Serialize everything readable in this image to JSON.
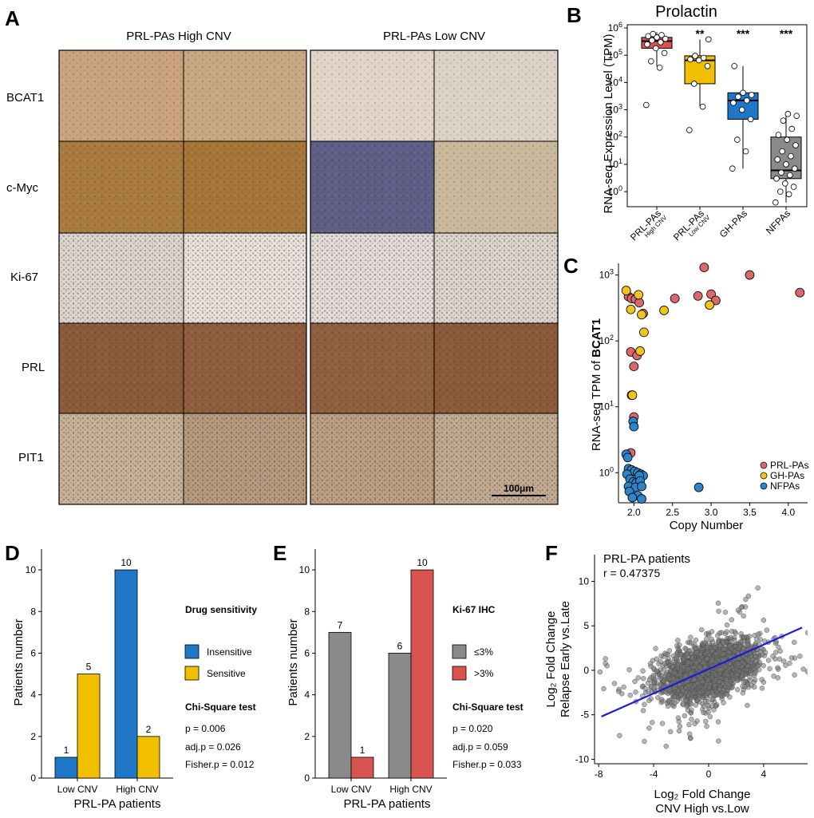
{
  "panel_labels": {
    "A": "A",
    "B": "B",
    "C": "C",
    "D": "D",
    "E": "E",
    "F": "F"
  },
  "panel_a": {
    "col_headers": [
      "PRL-PAs High CNV",
      "PRL-PAs Low CNV"
    ],
    "row_labels": [
      "BCAT1",
      "c-Myc",
      "Ki-67",
      "PRL",
      "PIT1"
    ],
    "scale_bar": "100μm",
    "tile_colors": [
      [
        "#c9a27e",
        "#c7a883",
        "#e0d5c6",
        "#dcd3c8"
      ],
      [
        "#a97a3f",
        "#a67638",
        "#5e5e86",
        "#c9b99a"
      ],
      [
        "#ddd6cf",
        "#e8e2dc",
        "#e2ddd8",
        "#ddd6cf"
      ],
      [
        "#8a5a3b",
        "#8d5d3e",
        "#8f6040",
        "#8a5a3b"
      ],
      [
        "#c8b299",
        "#b69b7f",
        "#bda084",
        "#c2ab92"
      ]
    ]
  },
  "chart_data": [
    {
      "panel": "B",
      "type": "box",
      "title": "Prolactin",
      "ylabel": "RNA-seq Expression Level (TPM)",
      "yscale": "log10",
      "ylim": [
        0.3,
        1000000
      ],
      "y_ticks": [
        {
          "v": 1,
          "base": "10",
          "exp": "0"
        },
        {
          "v": 10,
          "base": "10",
          "exp": "1"
        },
        {
          "v": 100,
          "base": "10",
          "exp": "2"
        },
        {
          "v": 1000,
          "base": "10",
          "exp": "3"
        },
        {
          "v": 10000,
          "base": "10",
          "exp": "4"
        },
        {
          "v": 100000,
          "base": "10",
          "exp": "5"
        },
        {
          "v": 1000000,
          "base": "10",
          "exp": "6"
        }
      ],
      "categories": [
        {
          "name": "PRL-PAs",
          "sub": "High CNV",
          "color": "#d9534f",
          "q1": 180000,
          "median": 330000,
          "q3": 450000,
          "whisker_low": 40000,
          "whisker_high": 700000,
          "significance": "",
          "points": [
            1500,
            35000,
            60000,
            120000,
            180000,
            250000,
            300000,
            350000,
            400000,
            450000,
            500000,
            550000,
            600000
          ]
        },
        {
          "name": "PRL-PAs",
          "sub": "Low CNV",
          "color": "#f0c000",
          "q1": 9000,
          "median": 65000,
          "q3": 95000,
          "whisker_low": 1300,
          "whisker_high": 380000,
          "significance": "**",
          "points": [
            180,
            1300,
            9000,
            40000,
            65000,
            70000,
            80000,
            95000,
            380000
          ]
        },
        {
          "name": "GH-PAs",
          "sub": "",
          "color": "#1f77c8",
          "q1": 450,
          "median": 2200,
          "q3": 4200,
          "whisker_low": 7,
          "whisker_high": 40000,
          "significance": "***",
          "points": [
            7,
            30,
            80,
            450,
            1000,
            1800,
            2200,
            3000,
            3500,
            4200,
            40000
          ]
        },
        {
          "name": "NFPAs",
          "sub": "",
          "color": "#8a8a8a",
          "q1": 3,
          "median": 6,
          "q3": 100,
          "whisker_low": 0.4,
          "whisker_high": 700,
          "significance": "***",
          "points": [
            0.4,
            0.8,
            1,
            1.5,
            2,
            3,
            4,
            5,
            7,
            10,
            15,
            20,
            30,
            50,
            80,
            120,
            200,
            400,
            600,
            700
          ]
        }
      ]
    },
    {
      "panel": "C",
      "type": "scatter",
      "xlabel": "Copy Number",
      "ylabel_prefix": "RNA-seq TPM of ",
      "ylabel_gene": "BCAT1",
      "yscale": "log10",
      "xlim": [
        1.8,
        4.25
      ],
      "ylim": [
        0.35,
        1500
      ],
      "x_ticks": [
        "2.0",
        "2.5",
        "3.0",
        "3.5",
        "4.0"
      ],
      "y_ticks": [
        {
          "v": 1,
          "base": "10",
          "exp": "0"
        },
        {
          "v": 10,
          "base": "10",
          "exp": "1"
        },
        {
          "v": 100,
          "base": "10",
          "exp": "2"
        },
        {
          "v": 1000,
          "base": "10",
          "exp": "3"
        }
      ],
      "series": [
        {
          "name": "PRL-PAs",
          "color": "#d9686a",
          "points": [
            [
              1.93,
              470
            ],
            [
              1.97,
              440
            ],
            [
              2.02,
              430
            ],
            [
              2.07,
              380
            ],
            [
              2.12,
              260
            ],
            [
              1.96,
              68
            ],
            [
              2.04,
              60
            ],
            [
              2.0,
              41
            ],
            [
              1.97,
              15
            ],
            [
              2.0,
              7
            ],
            [
              1.96,
              2
            ],
            [
              2.53,
              440
            ],
            [
              2.83,
              480
            ],
            [
              2.91,
              1300
            ],
            [
              3.0,
              510
            ],
            [
              3.06,
              410
            ],
            [
              3.5,
              1000
            ],
            [
              4.15,
              540
            ]
          ]
        },
        {
          "name": "GH-PAs",
          "color": "#f0c419",
          "points": [
            [
              1.9,
              580
            ],
            [
              1.96,
              300
            ],
            [
              2.06,
              500
            ],
            [
              2.1,
              250
            ],
            [
              2.13,
              135
            ],
            [
              2.08,
              70
            ],
            [
              1.98,
              15
            ],
            [
              2.39,
              290
            ],
            [
              2.98,
              350
            ]
          ]
        },
        {
          "name": "NFPAs",
          "color": "#2b85c6",
          "points": [
            [
              1.99,
              6
            ],
            [
              2.0,
              5
            ],
            [
              1.9,
              1.9
            ],
            [
              1.92,
              1.7
            ],
            [
              1.93,
              1.15
            ],
            [
              1.97,
              1.1
            ],
            [
              2.01,
              1.05
            ],
            [
              2.05,
              1.0
            ],
            [
              2.09,
              0.95
            ],
            [
              2.12,
              0.9
            ],
            [
              1.91,
              0.95
            ],
            [
              2.07,
              0.9
            ],
            [
              1.95,
              0.8
            ],
            [
              1.99,
              0.72
            ],
            [
              2.03,
              0.7
            ],
            [
              2.08,
              0.75
            ],
            [
              1.93,
              0.62
            ],
            [
              2.02,
              0.6
            ],
            [
              2.1,
              0.62
            ],
            [
              1.94,
              0.52
            ],
            [
              2.05,
              0.45
            ],
            [
              1.98,
              0.42
            ],
            [
              2.1,
              0.4
            ],
            [
              2.84,
              0.6
            ]
          ]
        }
      ]
    },
    {
      "panel": "D",
      "type": "bar",
      "categories": [
        "Low CNV",
        "High CNV"
      ],
      "xlabel": "PRL-PA patients",
      "ylabel": "Patients number",
      "ylim": [
        0,
        11
      ],
      "y_ticks": [
        "0",
        "2",
        "4",
        "6",
        "8",
        "10"
      ],
      "legend_title": "Drug sensitivity",
      "series": [
        {
          "name": "Insensitive",
          "color": "#1f77c8",
          "values": [
            1,
            10
          ]
        },
        {
          "name": "Sensitive",
          "color": "#f0c000",
          "values": [
            5,
            2
          ]
        }
      ],
      "stats_title": "Chi-Square test",
      "stats": [
        "p = 0.006",
        "adj.p = 0.026",
        "Fisher.p = 0.012"
      ]
    },
    {
      "panel": "E",
      "type": "bar",
      "categories": [
        "Low CNV",
        "High CNV"
      ],
      "xlabel": "PRL-PA patients",
      "ylabel": "Patients number",
      "ylim": [
        0,
        11
      ],
      "y_ticks": [
        "0",
        "2",
        "4",
        "6",
        "8",
        "10"
      ],
      "legend_title": "Ki-67 IHC",
      "series": [
        {
          "name": "≤3%",
          "color": "#8a8a8a",
          "values": [
            7,
            6
          ]
        },
        {
          "name": ">3%",
          "color": "#d9534f",
          "values": [
            1,
            10
          ]
        }
      ],
      "stats_title": "Chi-Square test",
      "stats": [
        "p = 0.020",
        "adj.p = 0.059",
        "Fisher.p = 0.033"
      ]
    },
    {
      "panel": "F",
      "type": "scatter",
      "title": "PRL-PA patients",
      "annotation": "r =  0.47375",
      "xlabel": [
        "Log₂ Fold Change",
        "CNV High vs.Low"
      ],
      "ylabel": [
        "Log₂ Fold Change",
        "Relapse Early vs.Late"
      ],
      "xlim": [
        -8.3,
        7.2
      ],
      "ylim": [
        -10.5,
        13
      ],
      "x_ticks": [
        "-8",
        "-4",
        "0",
        "4"
      ],
      "y_ticks": [
        "-10",
        "-5",
        "0",
        "5",
        "10"
      ],
      "point_color": "#777777",
      "cloud_center": [
        0,
        0
      ],
      "cloud_sd": [
        1.6,
        1.5
      ],
      "n_points": 2600,
      "fit_line": {
        "color": "#1a1adc",
        "x": [
          -7.8,
          6.8
        ],
        "y": [
          -5.2,
          4.8
        ]
      }
    }
  ]
}
